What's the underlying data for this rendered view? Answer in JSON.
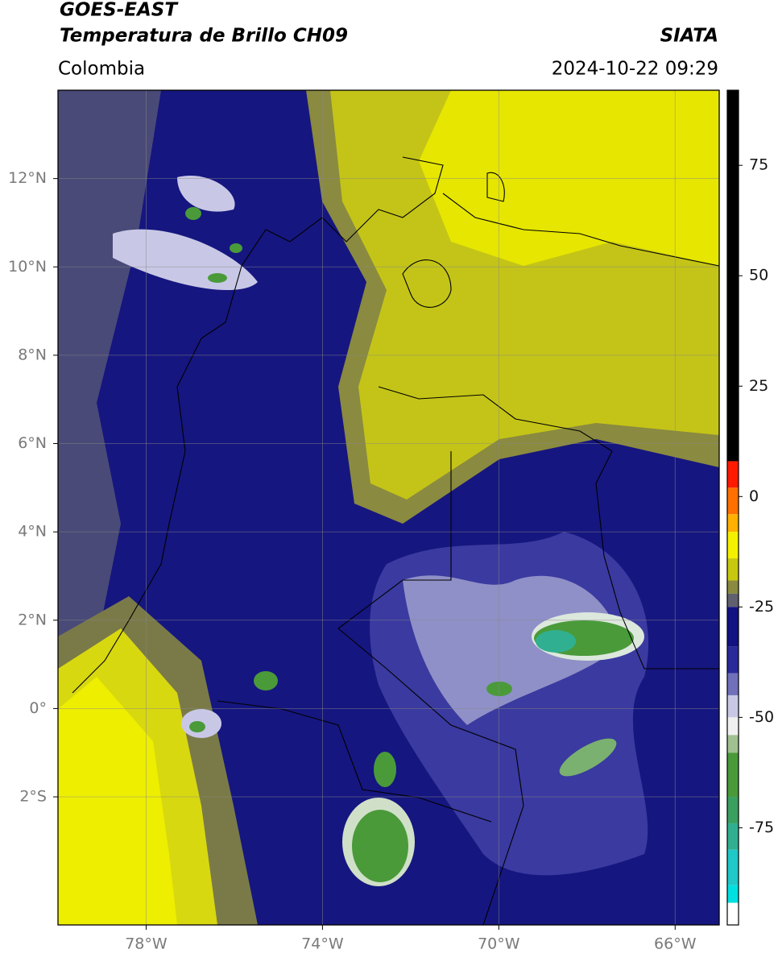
{
  "header": {
    "title": "GOES-EAST",
    "subtitle": "Temperatura de Brillo CH09",
    "region": "Colombia",
    "source": "SIATA",
    "datetime": "2024-10-22 09:29"
  },
  "map": {
    "lonlim": [
      -80,
      -65
    ],
    "latlim": [
      -4.9,
      14
    ],
    "grid": true,
    "lonticks": [
      {
        "value": -78,
        "label": "78°W"
      },
      {
        "value": -74,
        "label": "74°W"
      },
      {
        "value": -70,
        "label": "70°W"
      },
      {
        "value": -66,
        "label": "66°W"
      }
    ],
    "latticks": [
      {
        "value": 12,
        "label": "12°N"
      },
      {
        "value": 10,
        "label": "10°N"
      },
      {
        "value": 8,
        "label": "8°N"
      },
      {
        "value": 6,
        "label": "6°N"
      },
      {
        "value": 4,
        "label": "4°N"
      },
      {
        "value": 2,
        "label": "2°N"
      },
      {
        "value": 0,
        "label": "0°"
      },
      {
        "value": -2,
        "label": "2°S"
      }
    ]
  },
  "colorbar": {
    "lim": [
      -97,
      92
    ],
    "ticks": [
      75,
      50,
      25,
      0,
      -25,
      -50,
      -75
    ],
    "stops": [
      {
        "value": 92,
        "color": "#000000"
      },
      {
        "value": 8,
        "color": "#ff1a00"
      },
      {
        "value": 2,
        "color": "#ff7000"
      },
      {
        "value": -4,
        "color": "#ffb000"
      },
      {
        "value": -8,
        "color": "#f5f000"
      },
      {
        "value": -14,
        "color": "#c8c810"
      },
      {
        "value": -19,
        "color": "#8a8a40"
      },
      {
        "value": -22,
        "color": "#606070"
      },
      {
        "value": -25,
        "color": "#121282"
      },
      {
        "value": -34,
        "color": "#2a2a9a"
      },
      {
        "value": -40,
        "color": "#7070bb"
      },
      {
        "value": -45,
        "color": "#c8c8e6"
      },
      {
        "value": -50,
        "color": "#f0f0f0"
      },
      {
        "value": -54,
        "color": "#a0c090"
      },
      {
        "value": -58,
        "color": "#4a9a3a"
      },
      {
        "value": -68,
        "color": "#3aa060"
      },
      {
        "value": -74,
        "color": "#30b090"
      },
      {
        "value": -80,
        "color": "#20c8c8"
      },
      {
        "value": -88,
        "color": "#00e0e0"
      },
      {
        "value": -92,
        "color": "#ffffff"
      }
    ]
  }
}
